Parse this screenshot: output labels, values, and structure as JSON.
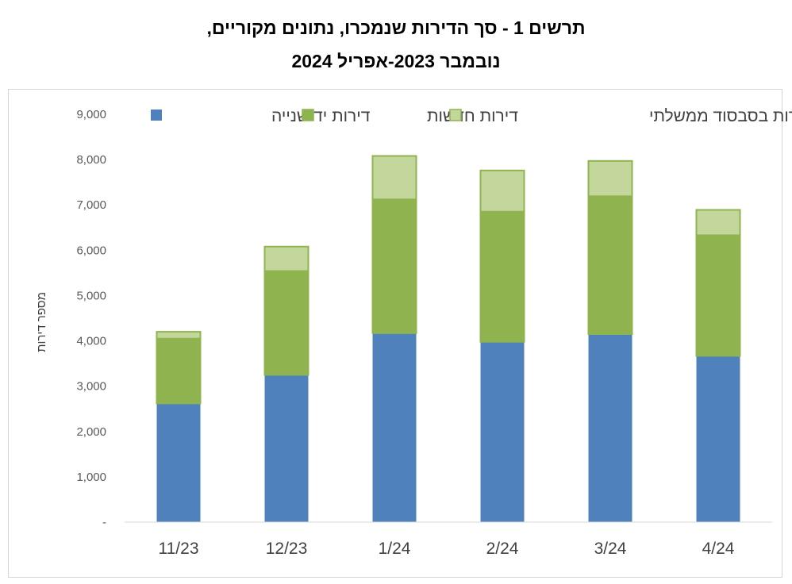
{
  "page": {
    "title_line1": "תרשים 1 - סך הדירות שנמכרו, נתונים מקוריים,",
    "title_line2": "נובמבר 2023-אפריל 2024"
  },
  "chart_data": {
    "type": "bar",
    "stacked": true,
    "categories": [
      "11/23",
      "12/23",
      "1/24",
      "2/24",
      "3/24",
      "4/24"
    ],
    "series": [
      {
        "name": "דירות יד שנייה",
        "color": "#4f81bd",
        "values": [
          2620,
          3250,
          4170,
          3980,
          4150,
          3670
        ]
      },
      {
        "name": "דירות חדשות",
        "color": "#8fb44f",
        "values": [
          1430,
          2290,
          2950,
          2870,
          3040,
          2660
        ]
      },
      {
        "name": "דירות בסבסוד ממשלתי",
        "color": "#c3d69b",
        "values": [
          150,
          540,
          960,
          910,
          780,
          560
        ]
      }
    ],
    "ylabel": "מספר דירות",
    "xlabel": "",
    "ylim": [
      0,
      9000
    ],
    "yticks": [
      {
        "v": 0,
        "label": "-"
      },
      {
        "v": 1000,
        "label": "1,000"
      },
      {
        "v": 2000,
        "label": "2,000"
      },
      {
        "v": 3000,
        "label": "3,000"
      },
      {
        "v": 4000,
        "label": "4,000"
      },
      {
        "v": 5000,
        "label": "5,000"
      },
      {
        "v": 6000,
        "label": "6,000"
      },
      {
        "v": 7000,
        "label": "7,000"
      },
      {
        "v": 8000,
        "label": "8,000"
      },
      {
        "v": 9000,
        "label": "9,000"
      }
    ],
    "grid": false,
    "legend_position": "top",
    "bar_outline_color": "#8fb44f"
  }
}
